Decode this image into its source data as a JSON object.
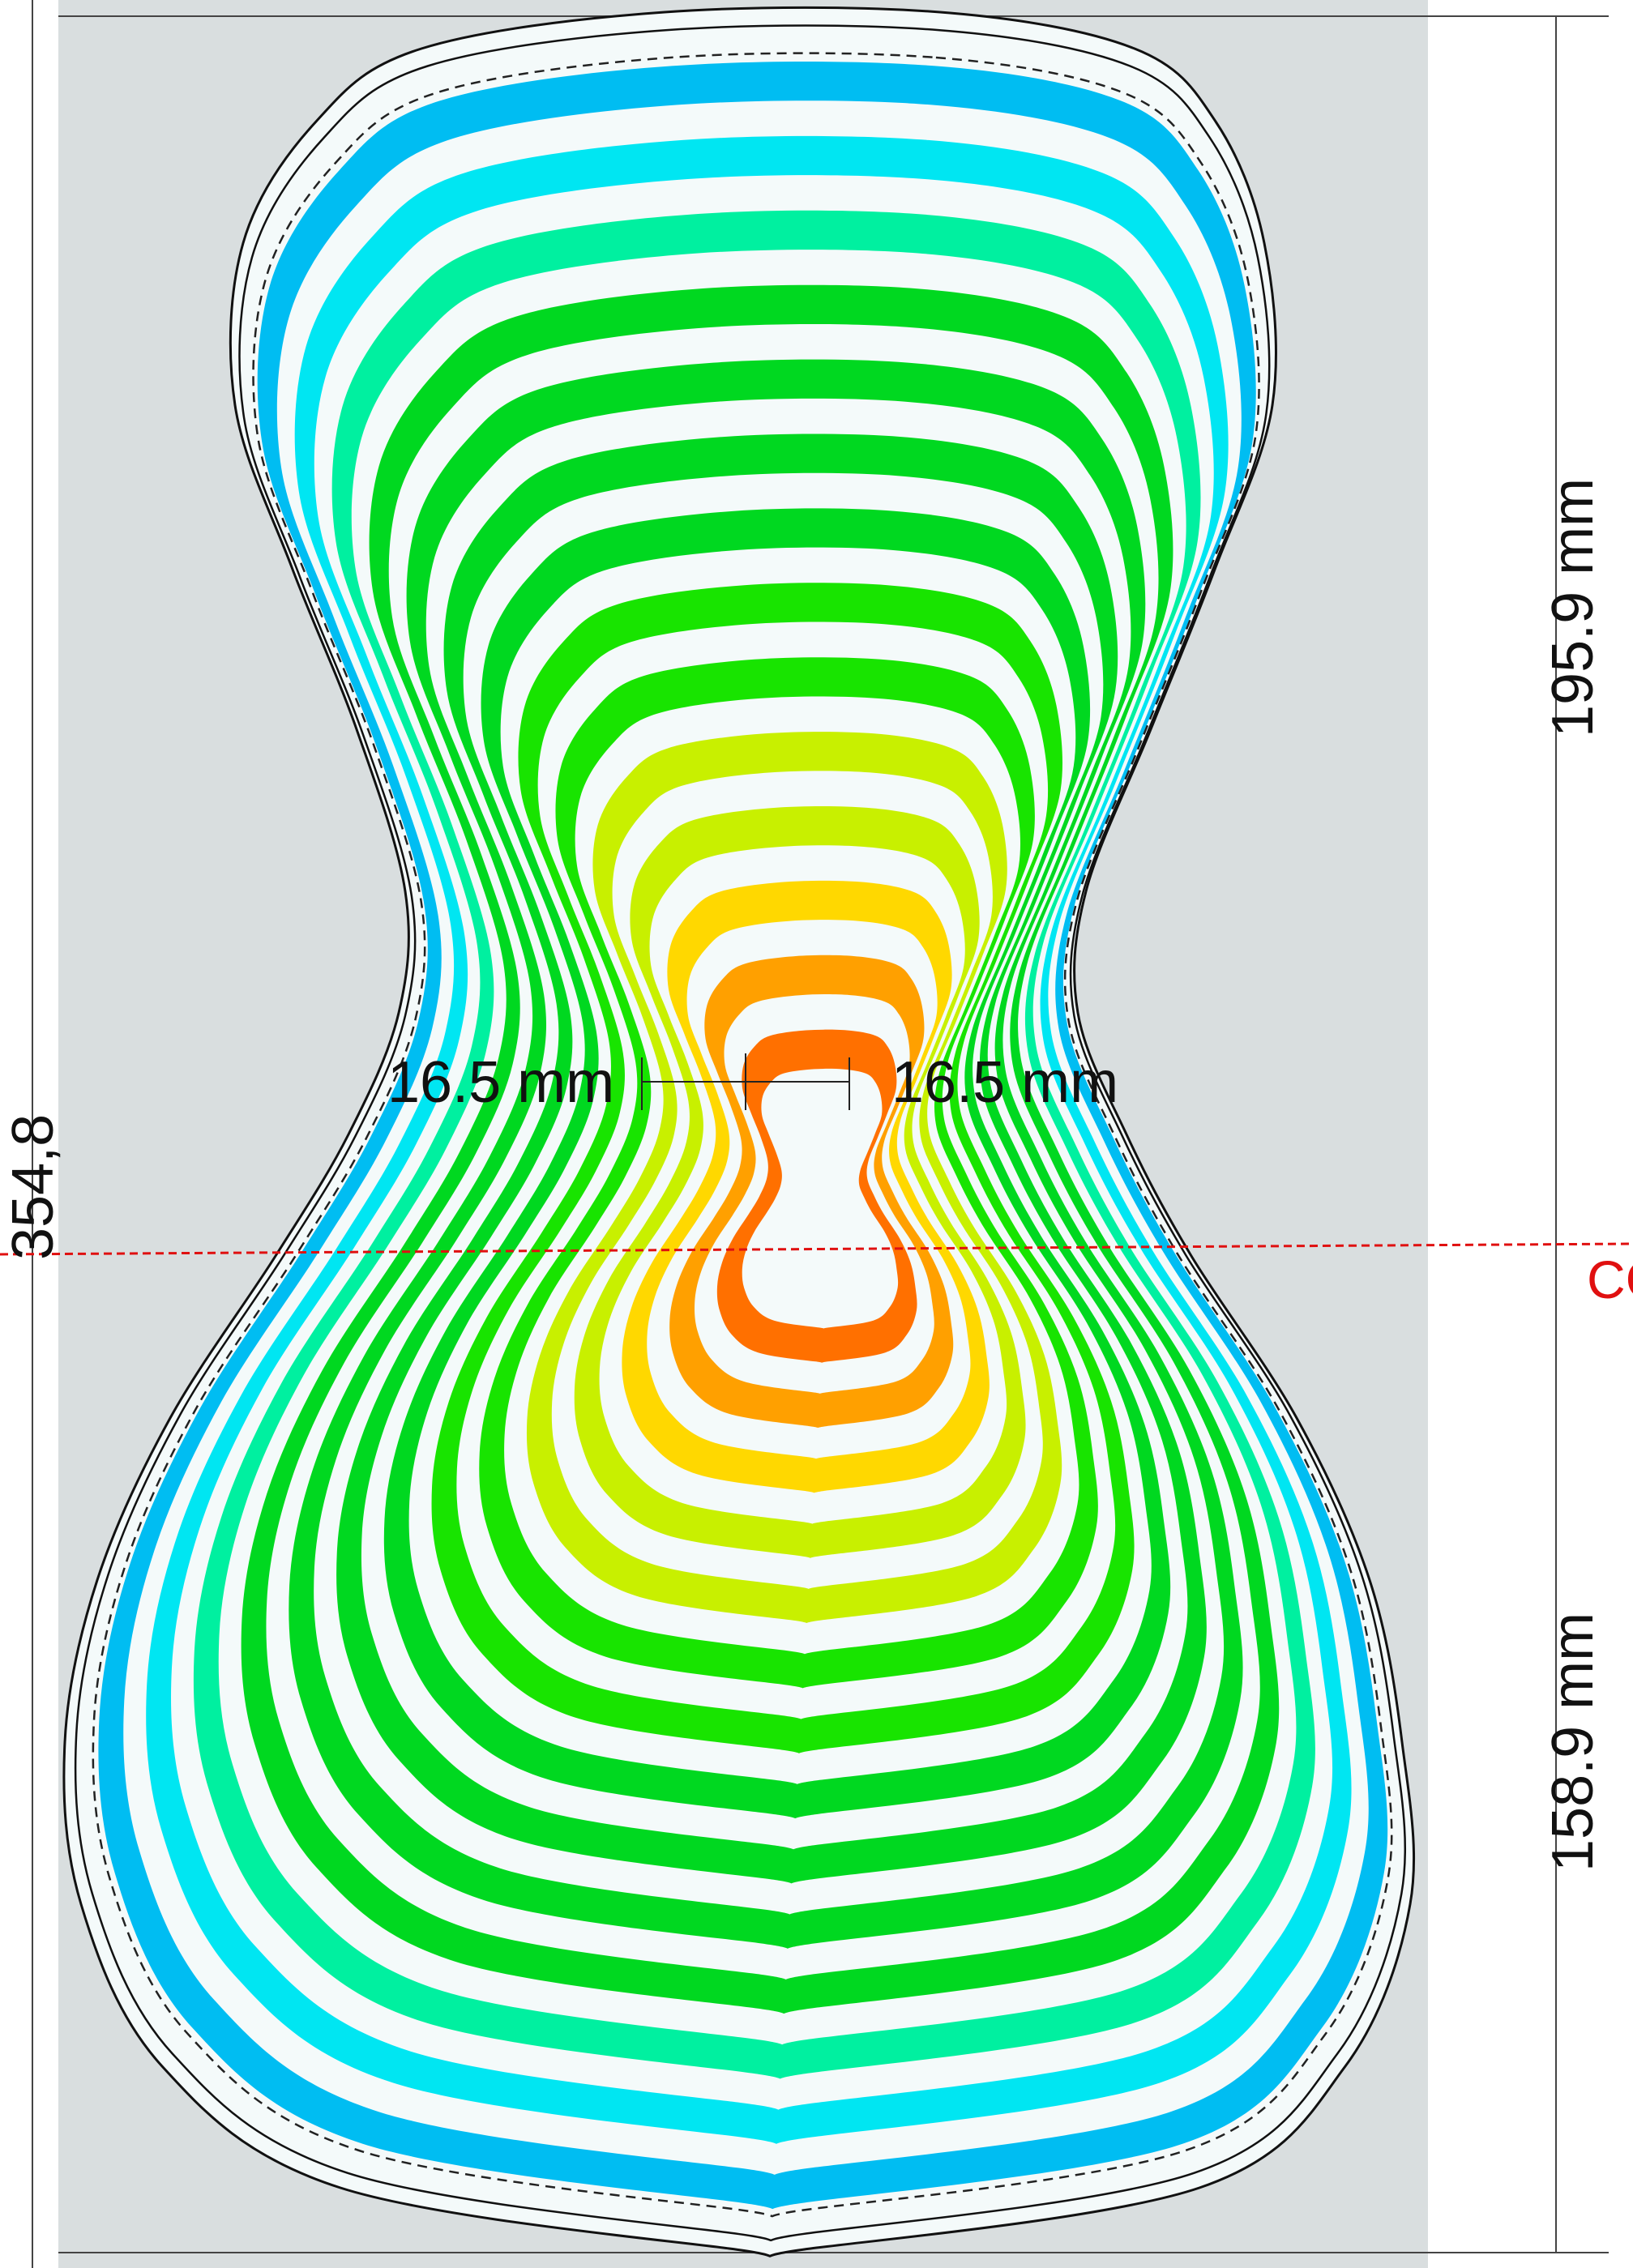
{
  "dimensions": {
    "total_height": "354,8",
    "upper_height": "195.9 mm",
    "lower_height": "158.9 mm",
    "left_offset": "16.5 mm",
    "right_offset": "16.5 mm"
  },
  "cg_label": "CG",
  "colors": {
    "background_panel": "#d9dedf",
    "gap": "#f4fafa",
    "cg_line": "#e01010",
    "contour_bands": [
      "#00bdf2",
      "#00e6f2",
      "#00f0a0",
      "#00d820",
      "#18e400",
      "#c8f000",
      "#ffd800",
      "#ffa000",
      "#ff7000"
    ]
  }
}
